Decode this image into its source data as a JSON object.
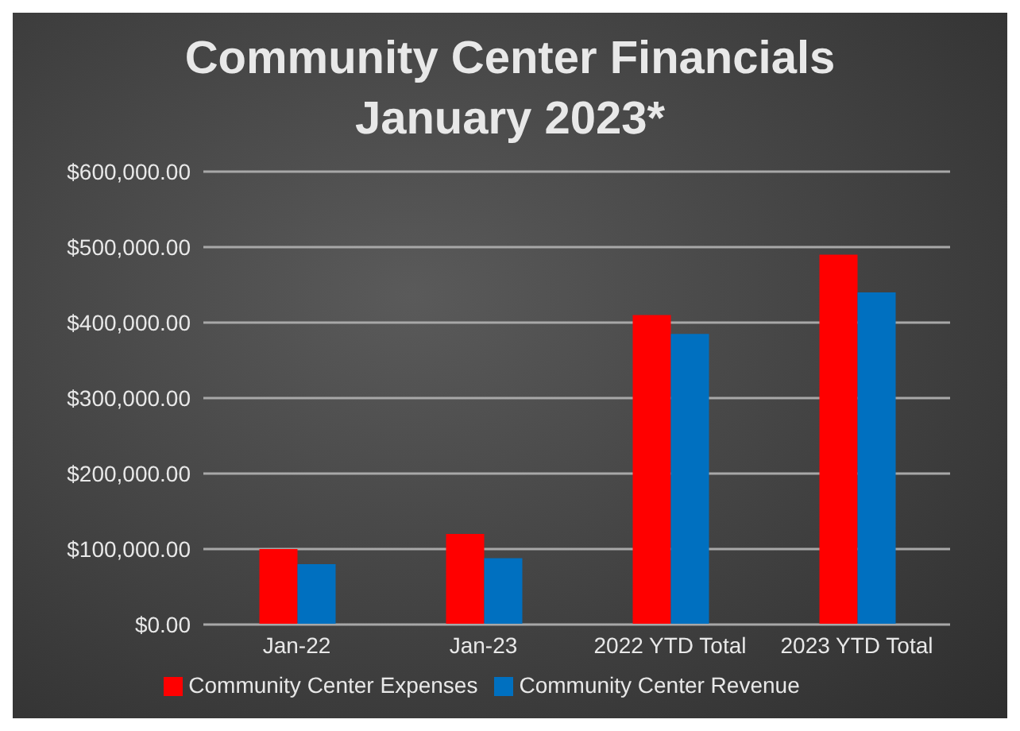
{
  "chart_data": {
    "type": "bar",
    "title": "Community Center Financials\nJanuary 2023*",
    "categories": [
      "Jan-22",
      "Jan-23",
      "2022 YTD Total",
      "2023 YTD Total"
    ],
    "series": [
      {
        "name": "Community Center Expenses",
        "color": "#ff0000",
        "values": [
          100000,
          120000,
          410000,
          490000
        ]
      },
      {
        "name": "Community Center Revenue",
        "color": "#0070c0",
        "values": [
          80000,
          88000,
          385000,
          440000
        ]
      }
    ],
    "ylim": [
      0,
      600000
    ],
    "yticks": [
      {
        "value": 0,
        "label": "$0.00"
      },
      {
        "value": 100000,
        "label": "$100,000.00"
      },
      {
        "value": 200000,
        "label": "$200,000.00"
      },
      {
        "value": 300000,
        "label": "$300,000.00"
      },
      {
        "value": 400000,
        "label": "$400,000.00"
      },
      {
        "value": 500000,
        "label": "$500,000.00"
      },
      {
        "value": 600000,
        "label": "$600,000.00"
      }
    ],
    "grid": "y",
    "legend": "bottom"
  }
}
